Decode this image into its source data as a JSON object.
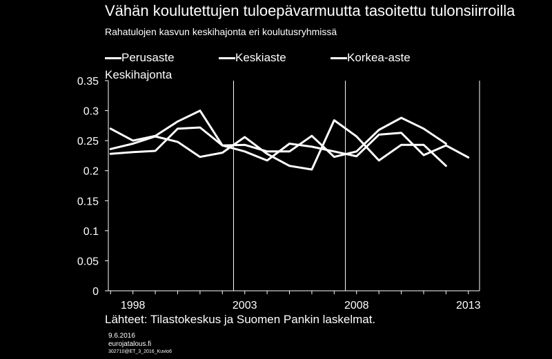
{
  "title": "Vähän koulutettujen tuloepävarmuutta tasoitettu tulonsiirroilla",
  "subtitle": "Rahatulojen kasvun keskihajonta eri koulutusryhmissä",
  "source": "Lähteet: Tilastokeskus ja Suomen Pankin laskelmat.",
  "footer": {
    "date": "9.6.2016",
    "site": "eurojatalous.fi",
    "code": "302710@ET_3_2016_Kuvio6"
  },
  "chart_data": {
    "type": "line",
    "ylabel": "Keskihajonta",
    "ylim": [
      0,
      0.35
    ],
    "yticks": [
      "0",
      "0.05",
      "0.1",
      "0.15",
      "0.2",
      "0.25",
      "0.3",
      "0.35"
    ],
    "xticks": [
      "1998",
      "2003",
      "2008",
      "2013"
    ],
    "x": [
      1997,
      1998,
      1999,
      2000,
      2001,
      2002,
      2003,
      2004,
      2005,
      2006,
      2007,
      2008,
      2009,
      2010,
      2011,
      2012,
      2013
    ],
    "legend_position": "top",
    "series": [
      {
        "name": "Perusaste",
        "values": [
          0.27,
          0.25,
          0.258,
          0.282,
          0.3,
          0.242,
          0.232,
          0.217,
          0.245,
          0.24,
          0.232,
          0.224,
          0.26,
          0.263,
          0.226,
          0.242,
          0.222
        ]
      },
      {
        "name": "Keskiaste",
        "values": [
          0.236,
          0.245,
          0.257,
          0.248,
          0.223,
          0.23,
          0.256,
          0.228,
          0.208,
          0.202,
          0.284,
          0.257,
          0.217,
          0.243,
          0.243,
          0.208,
          null
        ]
      },
      {
        "name": "Korkea-aste",
        "values": [
          0.228,
          0.231,
          0.233,
          0.27,
          0.272,
          0.242,
          0.243,
          0.232,
          0.232,
          0.258,
          0.223,
          0.232,
          0.268,
          0.288,
          0.27,
          0.245,
          null
        ]
      }
    ]
  }
}
